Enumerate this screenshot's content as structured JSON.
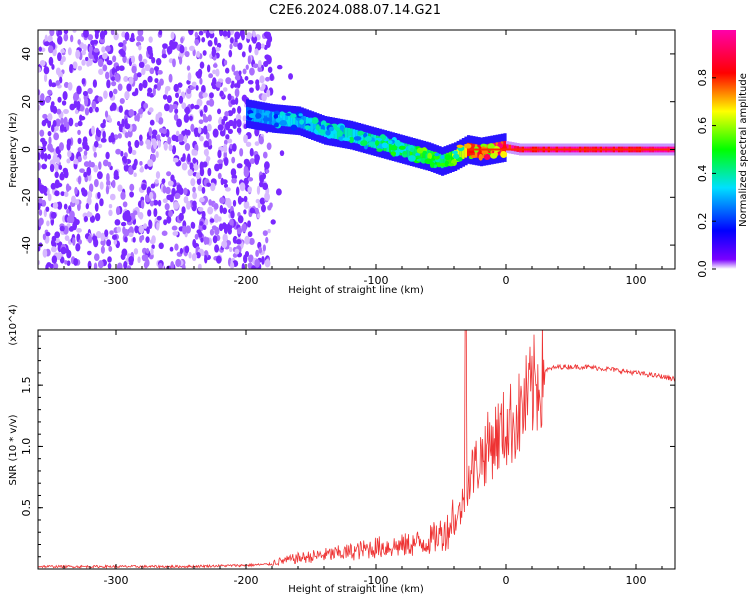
{
  "title": "C2E6.2024.088.07.14.G21",
  "chart_data": [
    {
      "type": "heatmap",
      "title": "C2E6.2024.088.07.14.G21",
      "xlabel": "Height of straight line (km)",
      "ylabel": "Frequency (Hz)",
      "xlim": [
        -360,
        130
      ],
      "ylim": [
        -50,
        50
      ],
      "xticks": [
        -300,
        -200,
        -100,
        0,
        100
      ],
      "yticks": [
        -40,
        -20,
        0,
        20,
        40
      ],
      "colorbar": {
        "label": "Normalized spectral amplitude",
        "range": [
          0.0,
          1.0
        ],
        "ticks": [
          0.0,
          0.2,
          0.4,
          0.6,
          0.8
        ],
        "colormap": "rainbow (purple-blue-cyan-green-yellow-red-magenta)"
      },
      "noise_region": {
        "x": [
          -360,
          -180
        ],
        "y": [
          -50,
          50
        ],
        "amplitude": 0.05
      },
      "signal_track": {
        "x": [
          -200,
          -180,
          -160,
          -140,
          -120,
          -100,
          -80,
          -60,
          -50,
          -40,
          -30,
          -20,
          -10,
          0,
          10,
          50,
          100,
          130
        ],
        "freq": [
          15,
          13,
          12,
          8,
          6,
          3,
          0,
          -3,
          -5,
          -3,
          0,
          -1,
          0,
          1,
          0,
          0,
          0,
          0
        ],
        "amplitude": [
          0.25,
          0.3,
          0.32,
          0.35,
          0.38,
          0.4,
          0.45,
          0.5,
          0.45,
          0.55,
          0.75,
          0.8,
          0.85,
          0.9,
          0.95,
          0.95,
          0.95,
          0.95
        ]
      },
      "grid": false
    },
    {
      "type": "line",
      "xlabel": "Height of straight line (km)",
      "ylabel": "SNR (10 * v/v)",
      "y_multiplier": "(x10^4)",
      "xlim": [
        -360,
        130
      ],
      "ylim": [
        0,
        1.95
      ],
      "xticks": [
        -300,
        -200,
        -100,
        0,
        100
      ],
      "yticks": [
        0.5,
        1.0,
        1.5
      ],
      "color": "#ee3333",
      "series": [
        {
          "x": [
            -360,
            -300,
            -250,
            -200,
            -180,
            -160,
            -140,
            -120,
            -100,
            -80,
            -60,
            -45,
            -34,
            -30,
            -20,
            -10,
            0,
            10,
            20,
            30,
            40,
            60,
            80,
            100,
            120,
            130
          ],
          "y": [
            0.02,
            0.02,
            0.02,
            0.03,
            0.04,
            0.07,
            0.09,
            0.11,
            0.14,
            0.15,
            0.18,
            0.25,
            0.5,
            0.72,
            0.9,
            1.05,
            1.15,
            1.25,
            1.45,
            1.62,
            1.65,
            1.65,
            1.63,
            1.6,
            1.57,
            1.55
          ]
        }
      ],
      "grid": false
    }
  ]
}
